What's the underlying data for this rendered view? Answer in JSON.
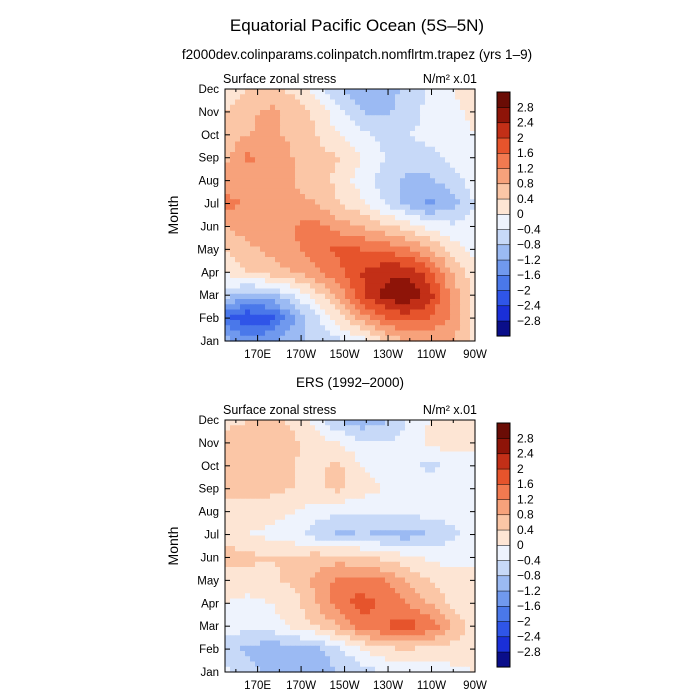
{
  "chart_data": {
    "type": "heatmap",
    "title": "Equatorial Pacific Ocean (5S–5N)",
    "subtitle": "f2000dev.colinparams.colinpatch.nomflrtm.trapez (yrs 1–9)",
    "contour_levels": [
      -2.8,
      -2.4,
      -2,
      -1.6,
      -1.2,
      -0.8,
      -0.4,
      0,
      0.4,
      0.8,
      1.2,
      1.6,
      2,
      2.4,
      2.8
    ],
    "colorbar_labels": [
      "2.8",
      "2.4",
      "2",
      "1.6",
      "1.2",
      "0.8",
      "0.4",
      "0",
      "−0.4",
      "−0.8",
      "−1.2",
      "−1.6",
      "−2",
      "−2.4",
      "−2.8"
    ],
    "colors": [
      "#0a0e8a",
      "#1a2fd8",
      "#2f55e8",
      "#4a78ea",
      "#7099ee",
      "#9bbaf3",
      "#c7d9f8",
      "#eef3fd",
      "#fde5d4",
      "#fbc6a6",
      "#f7a27b",
      "#f27a50",
      "#e6542c",
      "#c22f17",
      "#8e1408",
      "#6a0c05"
    ],
    "panels": [
      {
        "heading": "",
        "left_label": "Surface zonal stress",
        "right_label": "N/m² x.01",
        "xlabel": "",
        "ylabel": "Month",
        "x_ticks": [
          "170E",
          "170W",
          "150W",
          "130W",
          "110W",
          "90W"
        ],
        "y_ticks": [
          "Jan",
          "Feb",
          "Mar",
          "Apr",
          "May",
          "Jun",
          "Jul",
          "Aug",
          "Sep",
          "Oct",
          "Nov",
          "Dec"
        ],
        "x": [
          160,
          170,
          180,
          190,
          200,
          210,
          220,
          230,
          240,
          250,
          260,
          270
        ],
        "y": [
          "Jan",
          "Feb",
          "Mar",
          "Apr",
          "May",
          "Jun",
          "Jul",
          "Aug",
          "Sep",
          "Oct",
          "Nov",
          "Dec"
        ],
        "values": [
          [
            -1.0,
            -1.4,
            -1.2,
            -0.9,
            -0.7,
            -0.5,
            -0.2,
            0.4,
            0.8,
            0.9,
            0.8,
            0.3
          ],
          [
            -1.9,
            -2.4,
            -2.2,
            -1.3,
            -0.5,
            0.2,
            1.0,
            1.6,
            1.8,
            1.6,
            1.1,
            0.3
          ],
          [
            -0.6,
            -1.0,
            -0.9,
            -0.4,
            0.2,
            0.9,
            1.9,
            2.5,
            2.8,
            2.2,
            1.0,
            0.3
          ],
          [
            0.0,
            0.4,
            0.6,
            0.8,
            1.1,
            1.5,
            2.0,
            2.3,
            2.3,
            1.8,
            0.8,
            0.1
          ],
          [
            0.4,
            0.7,
            0.9,
            1.1,
            1.5,
            1.7,
            1.6,
            1.5,
            1.3,
            0.8,
            0.2,
            -0.1
          ],
          [
            0.8,
            1.0,
            1.0,
            1.2,
            1.4,
            1.0,
            0.8,
            0.5,
            0.2,
            -0.1,
            -0.3,
            -0.2
          ],
          [
            1.4,
            1.1,
            0.9,
            0.9,
            0.8,
            0.4,
            0.1,
            -0.4,
            -0.9,
            -1.3,
            -1.0,
            -0.4
          ],
          [
            0.9,
            1.0,
            0.9,
            0.8,
            0.6,
            0.3,
            -0.2,
            -0.6,
            -0.9,
            -0.9,
            -0.6,
            -0.2
          ],
          [
            0.7,
            1.3,
            1.1,
            0.8,
            0.6,
            0.4,
            0.0,
            -0.4,
            -0.6,
            -0.5,
            -0.3,
            -0.1
          ],
          [
            0.5,
            0.8,
            0.9,
            0.7,
            0.4,
            0.0,
            -0.3,
            -0.5,
            -0.4,
            -0.3,
            -0.2,
            0.0
          ],
          [
            0.4,
            0.7,
            0.9,
            0.7,
            0.3,
            -0.3,
            -0.8,
            -0.9,
            -0.6,
            -0.3,
            -0.1,
            0.1
          ],
          [
            0.2,
            0.4,
            0.5,
            0.3,
            -0.2,
            -0.7,
            -1.1,
            -1.0,
            -0.7,
            -0.3,
            0.0,
            0.2
          ]
        ]
      },
      {
        "heading": "ERS (1992–2000)",
        "left_label": "Surface zonal stress",
        "right_label": "N/m² x.01",
        "xlabel": "",
        "ylabel": "Month",
        "x_ticks": [
          "170E",
          "170W",
          "150W",
          "130W",
          "110W",
          "90W"
        ],
        "y_ticks": [
          "Jan",
          "Feb",
          "Mar",
          "Apr",
          "May",
          "Jun",
          "Jul",
          "Aug",
          "Sep",
          "Oct",
          "Nov",
          "Dec"
        ],
        "x": [
          160,
          170,
          180,
          190,
          200,
          210,
          220,
          230,
          240,
          250,
          260,
          270
        ],
        "y": [
          "Jan",
          "Feb",
          "Mar",
          "Apr",
          "May",
          "Jun",
          "Jul",
          "Aug",
          "Sep",
          "Oct",
          "Nov",
          "Dec"
        ],
        "values": [
          [
            -0.3,
            -0.6,
            -0.9,
            -1.2,
            -1.1,
            -0.8,
            -0.6,
            -0.4,
            -0.3,
            -0.2,
            -0.1,
            0.0
          ],
          [
            -0.6,
            -0.9,
            -1.1,
            -1.0,
            -0.9,
            -0.5,
            0.0,
            0.3,
            0.4,
            0.3,
            0.2,
            0.1
          ],
          [
            -0.2,
            -0.3,
            -0.2,
            0.1,
            0.4,
            0.8,
            1.4,
            1.6,
            1.8,
            1.5,
            0.8,
            0.2
          ],
          [
            0.0,
            -0.1,
            0.0,
            0.2,
            0.8,
            1.4,
            1.8,
            1.5,
            1.2,
            0.8,
            0.3,
            0.0
          ],
          [
            0.2,
            0.2,
            0.3,
            0.5,
            0.9,
            1.3,
            1.4,
            1.2,
            0.8,
            0.4,
            0.1,
            0.0
          ],
          [
            0.6,
            0.5,
            0.4,
            0.5,
            0.6,
            0.6,
            0.5,
            0.3,
            0.1,
            -0.1,
            -0.1,
            0.0
          ],
          [
            0.2,
            0.0,
            -0.1,
            -0.3,
            -0.6,
            -0.9,
            -0.8,
            -0.9,
            -1.0,
            -0.8,
            -0.5,
            -0.2
          ],
          [
            0.3,
            0.2,
            0.2,
            0.0,
            -0.2,
            -0.3,
            -0.4,
            -0.3,
            -0.3,
            -0.2,
            -0.2,
            -0.1
          ],
          [
            0.5,
            0.6,
            0.5,
            0.4,
            0.3,
            0.5,
            0.2,
            0.0,
            -0.1,
            -0.2,
            -0.1,
            0.0
          ],
          [
            0.4,
            0.5,
            0.6,
            0.4,
            0.3,
            0.5,
            0.0,
            -0.2,
            -0.3,
            -0.5,
            -0.3,
            0.0
          ],
          [
            0.5,
            0.6,
            0.8,
            0.5,
            0.2,
            0.0,
            -0.3,
            -0.4,
            -0.2,
            0.1,
            0.2,
            0.0
          ],
          [
            0.3,
            0.4,
            0.5,
            0.3,
            -0.2,
            -0.8,
            -1.1,
            -0.9,
            -0.4,
            0.0,
            0.1,
            0.0
          ]
        ]
      }
    ]
  }
}
